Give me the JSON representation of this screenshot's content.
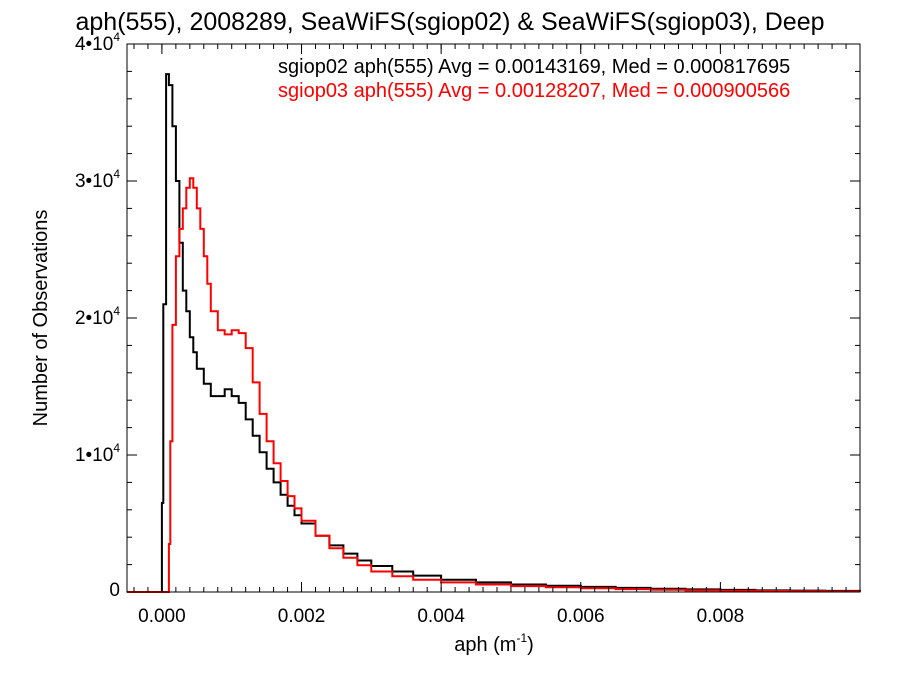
{
  "chart_data": {
    "type": "histogram",
    "title": "aph(555), 2008289, SeaWiFS(sgiop02) & SeaWiFS(sgiop03), Deep",
    "xlabel": "aph (m",
    "xlabel_sup": "-1",
    "xlabel_tail": ")",
    "ylabel": "Number of Observations",
    "xlim": [
      -0.0005,
      0.01
    ],
    "ylim": [
      0,
      40000
    ],
    "x_ticks": [
      {
        "value": 0.0,
        "label": "0.000"
      },
      {
        "value": 0.002,
        "label": "0.002"
      },
      {
        "value": 0.004,
        "label": "0.004"
      },
      {
        "value": 0.006,
        "label": "0.006"
      },
      {
        "value": 0.008,
        "label": "0.008"
      }
    ],
    "y_ticks": [
      {
        "value": 0,
        "label": "0",
        "sup": ""
      },
      {
        "value": 10000,
        "label": "1•10",
        "sup": "4"
      },
      {
        "value": 20000,
        "label": "2•10",
        "sup": "4"
      },
      {
        "value": 30000,
        "label": "3•10",
        "sup": "4"
      },
      {
        "value": 40000,
        "label": "4•10",
        "sup": "4"
      }
    ],
    "legend": [
      {
        "text": "sgiop02 aph(555) Avg = 0.00143169, Med = 0.000817695",
        "color": "#000000"
      },
      {
        "text": "sgiop03 aph(555) Avg = 0.00128207, Med = 0.000900566",
        "color": "#ff0000"
      }
    ],
    "series": [
      {
        "name": "sgiop02",
        "color": "#000000",
        "x": [
          -0.0005,
          -2e-05,
          0.0,
          2e-05,
          6e-05,
          0.0001,
          0.00015,
          0.0002,
          0.00025,
          0.0003,
          0.00035,
          0.0004,
          0.00045,
          0.0005,
          0.0006,
          0.0007,
          0.0008,
          0.0009,
          0.001,
          0.0011,
          0.0012,
          0.0013,
          0.0014,
          0.0015,
          0.0016,
          0.0017,
          0.0018,
          0.0019,
          0.002,
          0.0022,
          0.0024,
          0.0026,
          0.0028,
          0.003,
          0.0033,
          0.0036,
          0.004,
          0.0045,
          0.005,
          0.0055,
          0.006,
          0.0065,
          0.007,
          0.0075,
          0.008,
          0.0085,
          0.009,
          0.0095,
          0.01
        ],
        "values": [
          0,
          0,
          6500,
          21000,
          37800,
          37000,
          34000,
          30000,
          25500,
          22000,
          20500,
          18600,
          17500,
          16300,
          15200,
          14300,
          14300,
          14800,
          14300,
          13800,
          12600,
          11400,
          10200,
          9000,
          8000,
          7100,
          6300,
          5600,
          5000,
          4100,
          3400,
          2800,
          2300,
          1900,
          1500,
          1200,
          900,
          700,
          550,
          450,
          370,
          300,
          240,
          190,
          150,
          120,
          100,
          80,
          60
        ]
      },
      {
        "name": "sgiop03",
        "color": "#ff0000",
        "x": [
          -0.0005,
          6e-05,
          0.0001,
          0.00012,
          0.00015,
          0.0002,
          0.00025,
          0.0003,
          0.00035,
          0.0004,
          0.00045,
          0.0005,
          0.00055,
          0.0006,
          0.00065,
          0.0007,
          0.0008,
          0.0009,
          0.001,
          0.0011,
          0.0012,
          0.0013,
          0.0014,
          0.0015,
          0.0016,
          0.0017,
          0.0018,
          0.0019,
          0.002,
          0.0022,
          0.0024,
          0.0026,
          0.0028,
          0.003,
          0.0033,
          0.0036,
          0.004,
          0.0045,
          0.005,
          0.0055,
          0.006,
          0.0065,
          0.007,
          0.0075,
          0.008,
          0.0085,
          0.009,
          0.0095,
          0.01
        ],
        "values": [
          0,
          0,
          3500,
          11000,
          19500,
          24500,
          26500,
          28000,
          29500,
          30200,
          29500,
          28000,
          26500,
          24500,
          22500,
          20500,
          19100,
          18800,
          19100,
          18900,
          17800,
          15300,
          13000,
          11000,
          9400,
          8100,
          7000,
          6100,
          5200,
          4100,
          3200,
          2500,
          1950,
          1500,
          1150,
          900,
          700,
          550,
          430,
          340,
          270,
          210,
          160,
          120,
          95,
          75,
          55,
          40,
          25
        ]
      }
    ]
  }
}
